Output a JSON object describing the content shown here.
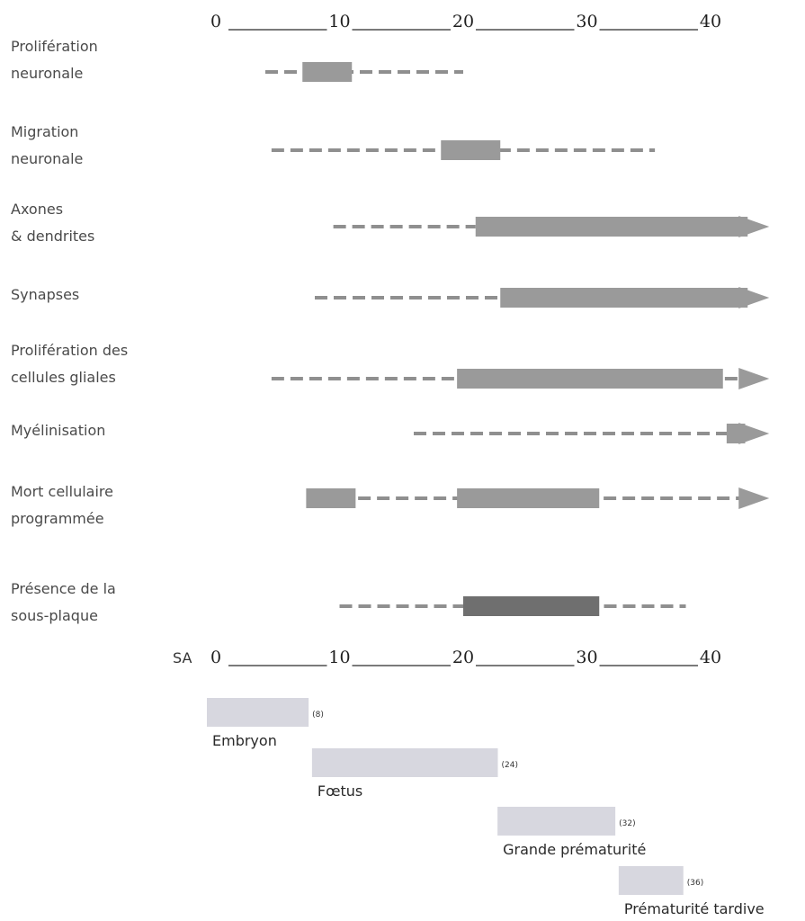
{
  "chart_data": {
    "type": "timeline",
    "axis": {
      "unit_label": "SA",
      "ticks": [
        "0",
        "10",
        "20",
        "30",
        "40"
      ],
      "range": [
        0,
        40
      ]
    },
    "rows": [
      {
        "label_lines": [
          "Prolifération",
          "neuronale"
        ],
        "dashed": [
          [
            4,
            20
          ]
        ],
        "solid": [
          [
            7,
            11
          ]
        ],
        "arrow": false,
        "solid_color": "#9a9a9a"
      },
      {
        "label_lines": [
          "Migration",
          "neuronale"
        ],
        "dashed": [
          [
            4.5,
            35.5
          ]
        ],
        "solid": [
          [
            18.2,
            23
          ]
        ],
        "arrow": false,
        "solid_color": "#9a9a9a"
      },
      {
        "label_lines": [
          "Axones",
          "& dendrites"
        ],
        "dashed": [
          [
            9.5,
            21
          ]
        ],
        "solid": [
          [
            21,
            43
          ]
        ],
        "arrow": true,
        "solid_color": "#9a9a9a"
      },
      {
        "label_lines": [
          "Synapses"
        ],
        "dashed": [
          [
            8,
            23
          ]
        ],
        "solid": [
          [
            23,
            43
          ]
        ],
        "arrow": true,
        "solid_color": "#9a9a9a"
      },
      {
        "label_lines": [
          "Prolifération des",
          "cellules gliales"
        ],
        "dashed": [
          [
            4.5,
            43
          ]
        ],
        "solid": [
          [
            19.5,
            41
          ]
        ],
        "arrow": true,
        "solid_color": "#9a9a9a"
      },
      {
        "label_lines": [
          "Myélinisation"
        ],
        "dashed": [
          [
            16,
            43
          ]
        ],
        "solid": [
          [
            41.3,
            42.8
          ]
        ],
        "arrow": true,
        "solid_color": "#9a9a9a"
      },
      {
        "label_lines": [
          "Mort cellulaire",
          "programmée"
        ],
        "dashed": [
          [
            11.5,
            43
          ]
        ],
        "solid": [
          [
            7.3,
            11.3
          ],
          [
            19.5,
            31
          ]
        ],
        "arrow": true,
        "solid_color": "#9a9a9a"
      },
      {
        "label_lines": [
          "Présence de la",
          "sous-plaque"
        ],
        "dashed": [
          [
            10,
            38
          ]
        ],
        "solid": [
          [
            20,
            31
          ]
        ],
        "arrow": false,
        "solid_color": "#6f6f6f"
      }
    ],
    "periods": [
      {
        "label": "Embryon",
        "week_label": "(8)",
        "start": 0,
        "end": 7.5
      },
      {
        "label": "Fœtus",
        "week_label": "(24)",
        "start": 8.5,
        "end": 22.8
      },
      {
        "label": "Grande prématurité",
        "week_label": "(32)",
        "start": 23.5,
        "end": 32.3
      },
      {
        "label": "Prématurité tardive",
        "week_label": "(36)",
        "start": 33.3,
        "end": 37.8
      }
    ]
  },
  "colors": {
    "bar": "#9a9a9a",
    "bar_dark": "#6f6f6f",
    "dash": "#8f8f8f",
    "axis_line": "#2a2a2a",
    "period_fill": "#d7d7df"
  }
}
